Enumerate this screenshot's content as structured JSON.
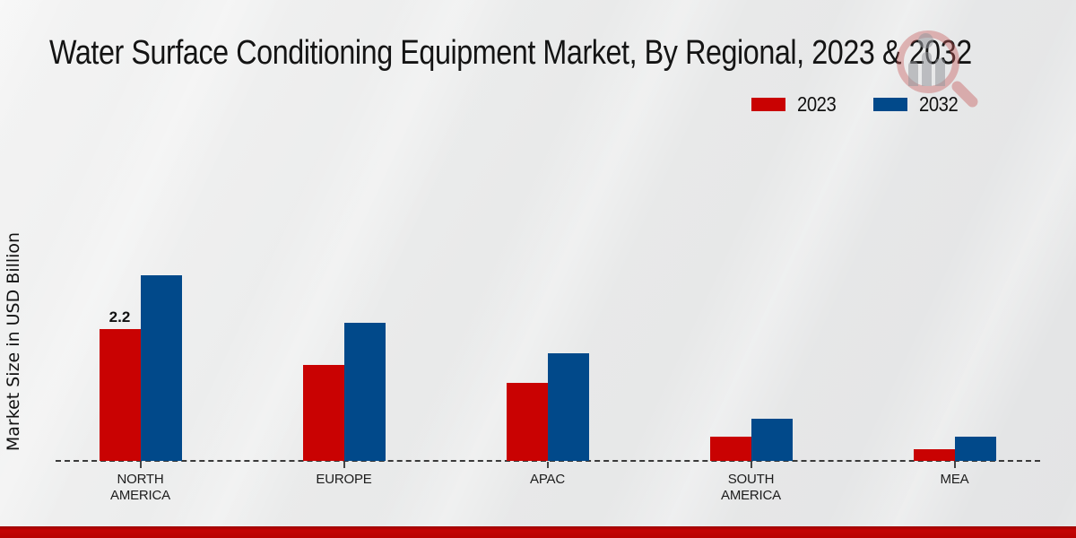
{
  "page": {
    "title": "Water Surface Conditioning Equipment Market, By Regional, 2023 & 2032",
    "y_axis_label": "Market Size in USD Billion"
  },
  "colors": {
    "bar_2023": "#c90202",
    "bar_2032": "#01498a",
    "baseline": "#3a3a3a",
    "footer_bar": "#c40404",
    "background": "#e9eaea",
    "watermark_red": "#c65858",
    "watermark_gray": "#96989c"
  },
  "legend": {
    "items": [
      {
        "label": "2023",
        "color": "#c90202"
      },
      {
        "label": "2032",
        "color": "#01498a"
      }
    ]
  },
  "watermark": {
    "icon": "magnifier-bar-chart-logo"
  },
  "chart_data": {
    "type": "bar",
    "title": "Water Surface Conditioning Equipment Market, By Regional, 2023 & 2032",
    "xlabel": "",
    "ylabel": "Market Size in USD Billion",
    "categories": [
      "NORTH AMERICA",
      "EUROPE",
      "APAC",
      "SOUTH AMERICA",
      "MEA"
    ],
    "series": [
      {
        "name": "2023",
        "color": "#c90202",
        "values": [
          2.2,
          1.6,
          1.3,
          0.4,
          0.2
        ]
      },
      {
        "name": "2032",
        "color": "#01498a",
        "values": [
          3.1,
          2.3,
          1.8,
          0.7,
          0.4
        ]
      }
    ],
    "annotations": [
      {
        "series": "2023",
        "category": "NORTH AMERICA",
        "text": "2.2"
      }
    ],
    "ylim": [
      0,
      3.5
    ],
    "grid": false,
    "legend_position": "top-right",
    "baseline_style": "dashed",
    "y_axis_ticks_visible": false
  }
}
